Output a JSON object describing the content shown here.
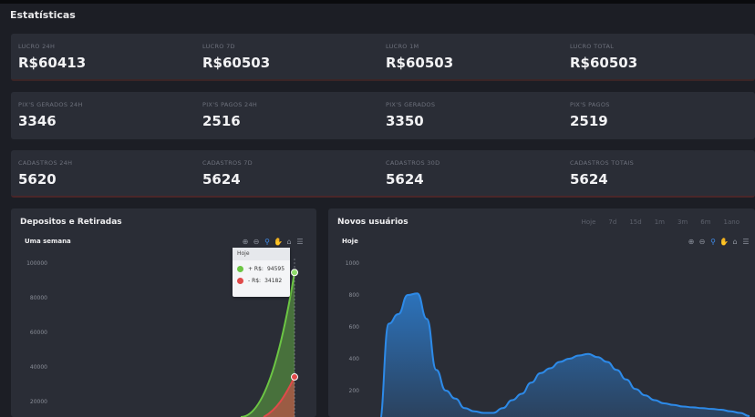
{
  "page": {
    "title": "Estatísticas"
  },
  "stats": {
    "row1": [
      {
        "label": "LUCRO 24H",
        "value": "R$60413"
      },
      {
        "label": "LUCRO 7D",
        "value": "R$60503"
      },
      {
        "label": "LUCRO 1M",
        "value": "R$60503"
      },
      {
        "label": "LUCRO TOTAL",
        "value": "R$60503"
      }
    ],
    "row2": [
      {
        "label": "PIX'S GERADOS 24H",
        "value": "3346"
      },
      {
        "label": "PIX'S PAGOS 24H",
        "value": "2516"
      },
      {
        "label": "PIX'S GERADOS",
        "value": "3350"
      },
      {
        "label": "PIX'S PAGOS",
        "value": "2519"
      }
    ],
    "row3": [
      {
        "label": "CADASTROS 24H",
        "value": "5620"
      },
      {
        "label": "CADASTROS 7D",
        "value": "5624"
      },
      {
        "label": "CADASTROS 30D",
        "value": "5624"
      },
      {
        "label": "CADASTROS TOTAIS",
        "value": "5624"
      }
    ]
  },
  "deposits_card": {
    "title": "Depositos e Retiradas",
    "subtitle": "Uma semana",
    "tooltip": {
      "header": "Hoje",
      "rows": [
        {
          "label": "+ R$:",
          "value": "94595",
          "color": "#6cc644"
        },
        {
          "label": "- R$:",
          "value": "34182",
          "color": "#e04a4a"
        }
      ]
    }
  },
  "users_card": {
    "title": "Novos usuários",
    "subtitle": "Hoje",
    "range_tabs": [
      "Hoje",
      "7d",
      "15d",
      "1m",
      "3m",
      "6m",
      "1ano"
    ]
  },
  "toolbar_icons": [
    "zoom-in-icon",
    "zoom-out-icon",
    "magnifier-icon",
    "pan-hand-icon",
    "home-icon",
    "menu-icon"
  ],
  "chart_data": [
    {
      "type": "area",
      "title": "Uma semana",
      "ylim": [
        0,
        100000
      ],
      "yticks": [
        "100000",
        "80000",
        "60000",
        "40000",
        "20000"
      ],
      "series": [
        {
          "name": "+ R$",
          "color": "#6cc644",
          "last_value": 94595
        },
        {
          "name": "- R$",
          "color": "#e04a4a",
          "last_value": 34182
        }
      ]
    },
    {
      "type": "area",
      "title": "Hoje",
      "ylim": [
        0,
        1000
      ],
      "yticks": [
        "1000",
        "800",
        "600",
        "400",
        "200"
      ],
      "color": "#2d8ae8",
      "values": [
        0,
        620,
        680,
        800,
        810,
        650,
        330,
        200,
        150,
        90,
        70,
        60,
        60,
        90,
        140,
        180,
        250,
        310,
        340,
        380,
        400,
        420,
        430,
        410,
        380,
        330,
        270,
        210,
        170,
        140,
        120,
        110,
        100,
        95,
        90,
        85,
        80,
        70,
        60,
        40
      ]
    }
  ]
}
